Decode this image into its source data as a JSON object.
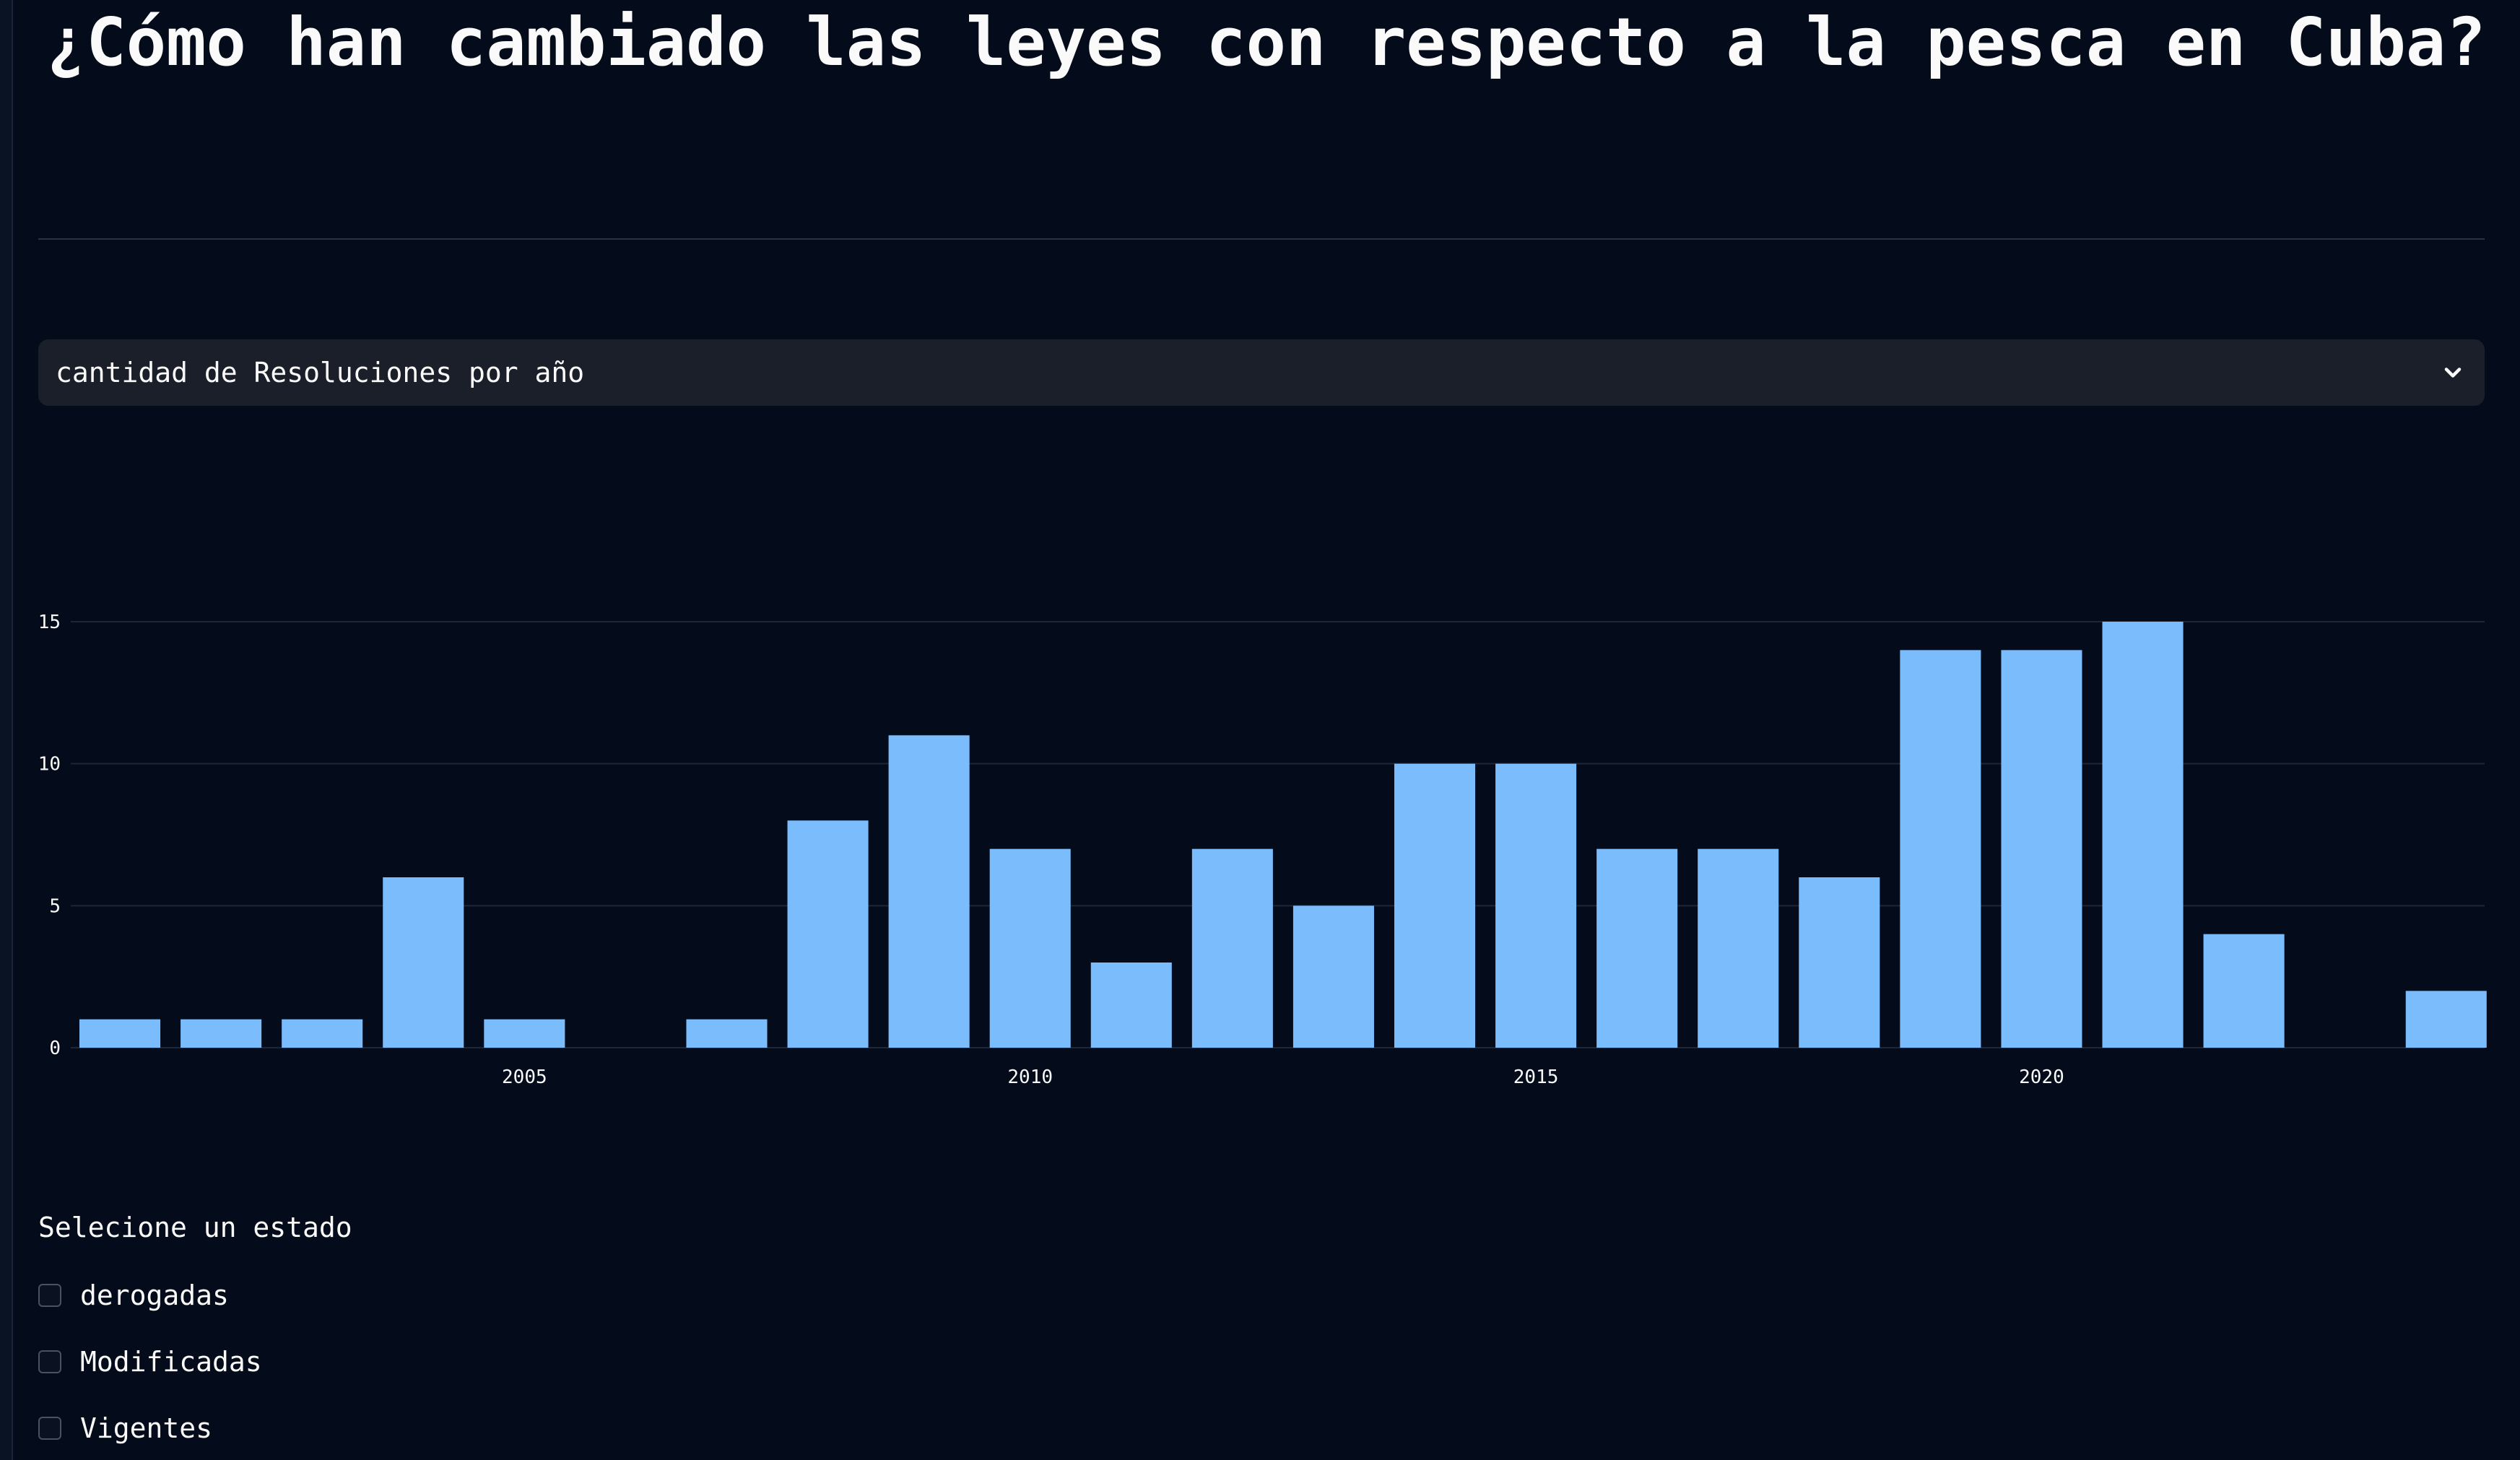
{
  "page": {
    "title": "¿Cómo han cambiado las leyes con respecto a la pesca en Cuba?"
  },
  "select": {
    "value": "cantidad de Resoluciones por año",
    "icon": "chevron-down-icon"
  },
  "colors": {
    "background": "#040b1a",
    "bar": "#7abcfc",
    "grid": "#1e2738",
    "select_bg": "#1b1f2a"
  },
  "chart_data": {
    "type": "bar",
    "x": [
      2001,
      2002,
      2003,
      2004,
      2005,
      2006,
      2007,
      2008,
      2009,
      2010,
      2011,
      2012,
      2013,
      2014,
      2015,
      2016,
      2017,
      2018,
      2019,
      2020,
      2021,
      2022,
      2023,
      2024
    ],
    "values": [
      1,
      1,
      1,
      6,
      1,
      0,
      1,
      8,
      11,
      7,
      3,
      7,
      5,
      10,
      10,
      7,
      7,
      6,
      14,
      14,
      15,
      4,
      0,
      2
    ],
    "x_ticks": [
      "2005",
      "2010",
      "2015",
      "2020"
    ],
    "y_ticks": [
      "0",
      "5",
      "10",
      "15"
    ],
    "ylim": [
      0,
      15
    ],
    "grid": true,
    "title": "",
    "xlabel": "",
    "ylabel": ""
  },
  "estado": {
    "label": "Selecione un estado",
    "options": [
      {
        "label": "derogadas",
        "checked": false
      },
      {
        "label": "Modificadas",
        "checked": false
      },
      {
        "label": "Vigentes",
        "checked": false
      }
    ]
  }
}
